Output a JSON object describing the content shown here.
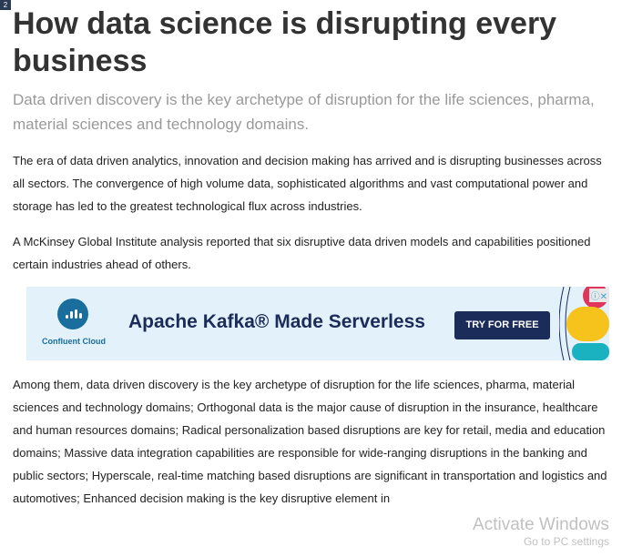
{
  "corner_badge": "2",
  "article": {
    "title_lines": [
      "How data science is disrupting every",
      "business"
    ],
    "subtitle_lines": [
      "Data driven discovery is the key archetype of disruption for the life sciences, pharma,",
      "material sciences and technology domains."
    ],
    "p1": [
      "The era of data driven analytics, innovation and decision making has arrived and is disrupting businesses",
      "across all sectors. The convergence of high volume data, sophisticated algorithms and vast computational",
      "power and storage has led to the greatest technological flux across industries."
    ],
    "p2": [
      "A McKinsey Global Institute analysis reported that six disruptive data driven models and capabilities",
      "positioned certain industries ahead of others."
    ],
    "p3": [
      "Among them, data driven discovery is the key archetype of disruption for the life sciences, pharma, material",
      "sciences and technology domains; Orthogonal data is the major cause of disruption in the insurance,",
      "healthcare and human resources domains; Radical personalization based disruptions are key for retail, media",
      "and education domains; Massive data integration capabilities are responsible for wide-ranging disruptions in",
      "the banking and public sectors; Hyperscale, real-time matching based disruptions are significant in",
      "transportation and logistics and automotives; Enhanced decision making is the key disruptive element in"
    ]
  },
  "ad": {
    "brand": "Confluent Cloud",
    "headline": "Apache Kafka® Made Serverless",
    "cta": "TRY FOR FREE",
    "controls": "ⓘ✕"
  },
  "watermark": {
    "line1": "Activate Windows",
    "line2": "Go to PC settings"
  }
}
